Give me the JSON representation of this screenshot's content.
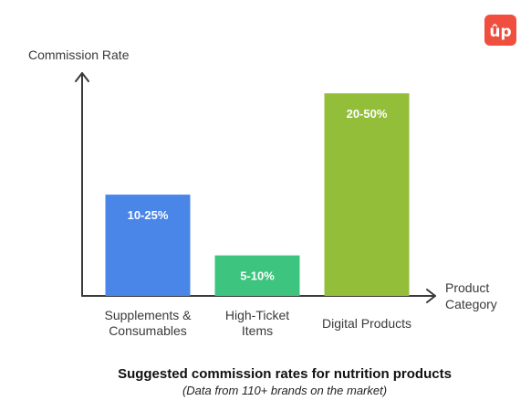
{
  "logo": {
    "text": "ûp",
    "color": "#f04e3e"
  },
  "chart_data": {
    "type": "bar",
    "ylabel": "Commission Rate",
    "xlabel": [
      "Product",
      "Category"
    ],
    "title": "Suggested commission rates for nutrition products",
    "subtitle": "(Data from 110+ brands on the market)",
    "ylim": [
      0,
      55
    ],
    "categories": [
      [
        "Supplements &",
        "Consumables"
      ],
      [
        "High-Ticket",
        "Items"
      ],
      [
        "Digital Products"
      ]
    ],
    "ranges": [
      [
        10,
        25
      ],
      [
        5,
        10
      ],
      [
        20,
        50
      ]
    ],
    "labels": [
      "10-25%",
      "5-10%",
      "20-50%"
    ],
    "colors": [
      "#4a86e8",
      "#3dc47e",
      "#93be3a"
    ],
    "grid": false
  }
}
